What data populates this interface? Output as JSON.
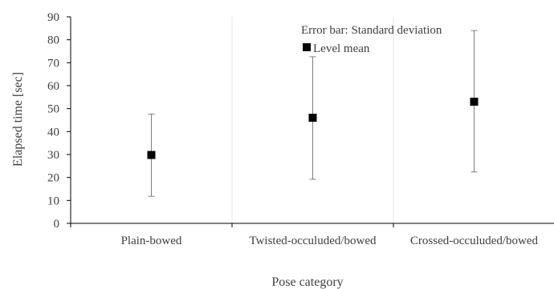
{
  "chart_data": {
    "type": "scatter",
    "xlabel": "Pose category",
    "ylabel": "Elapsed time [sec]",
    "ylim": [
      0,
      90
    ],
    "yticks": [
      0,
      10,
      20,
      30,
      40,
      50,
      60,
      70,
      80,
      90
    ],
    "grid": "vertical",
    "categories": [
      "Plain-bowed",
      "Twisted-occuluded/bowed",
      "Crossed-occuluded/bowed"
    ],
    "series": [
      {
        "name": "Level mean",
        "values": [
          29.8,
          46.0,
          53.0
        ],
        "error_low": [
          11.8,
          19.2,
          22.4
        ],
        "error_high": [
          47.6,
          72.6,
          84.0
        ]
      }
    ],
    "annotation": "Error bar: Standard deviation",
    "legend": "top-center",
    "marker_color": "#000000",
    "errorbar_color": "#7f7f7f",
    "axis_color": "#000000",
    "grid_color": "#e6e6e6"
  }
}
